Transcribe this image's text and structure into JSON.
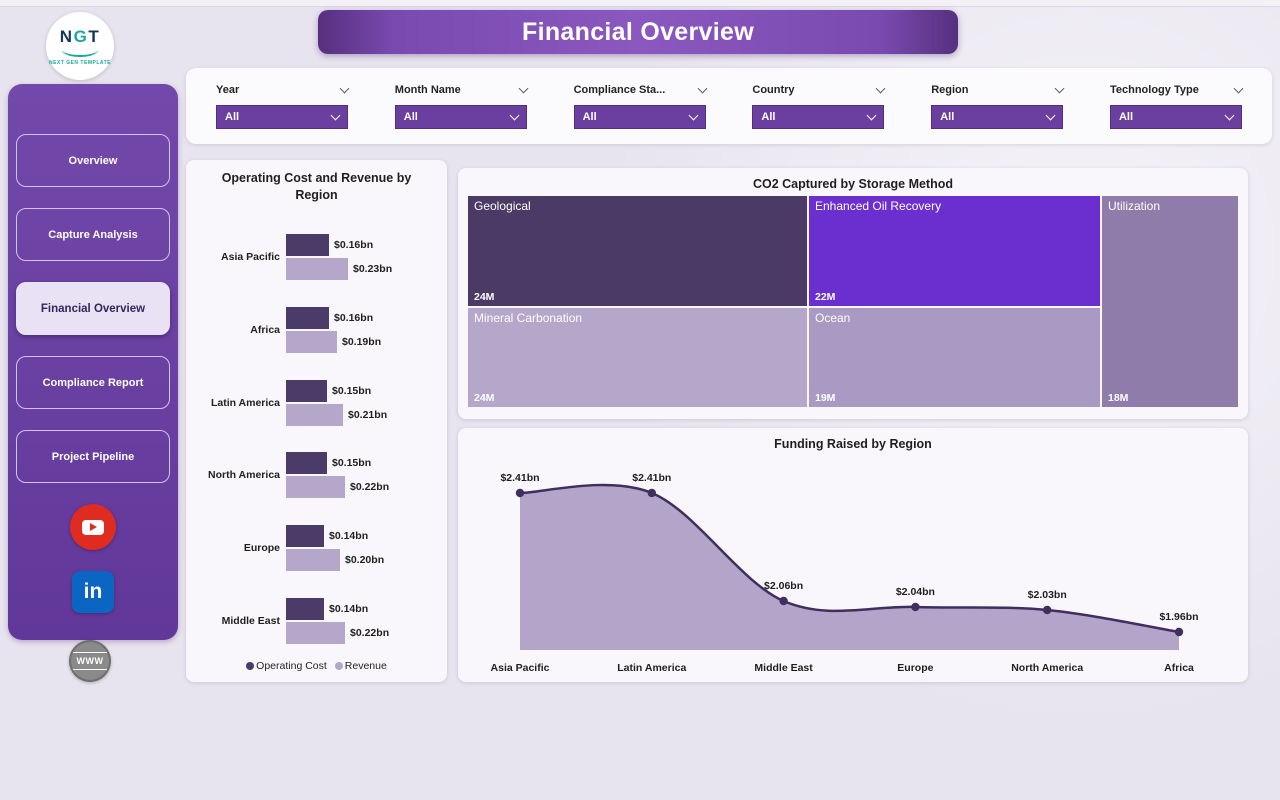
{
  "header": {
    "title": "Financial Overview"
  },
  "logo": {
    "text": "NGT",
    "subtext": "NEXT GEN TEMPLATE"
  },
  "sidebar": {
    "items": [
      {
        "label": "Overview",
        "active": false
      },
      {
        "label": "Capture Analysis",
        "active": false
      },
      {
        "label": "Financial Overview",
        "active": true
      },
      {
        "label": "Compliance Report",
        "active": false
      },
      {
        "label": "Project Pipeline",
        "active": false
      }
    ],
    "social": [
      "youtube",
      "linkedin",
      "website"
    ],
    "globe_text": "WWW"
  },
  "filters": [
    {
      "label": "Year",
      "value": "All"
    },
    {
      "label": "Month Name",
      "value": "All"
    },
    {
      "label": "Compliance Sta...",
      "value": "All"
    },
    {
      "label": "Country",
      "value": "All"
    },
    {
      "label": "Region",
      "value": "All"
    },
    {
      "label": "Technology Type",
      "value": "All"
    }
  ],
  "colors": {
    "operating_cost": "#4b3b68",
    "revenue": "#b4a7ca",
    "area_fill": "#b3a5c9",
    "area_line": "#3f2e5e",
    "accent_purple": "#6a3fa0"
  },
  "chart_data": [
    {
      "type": "bar",
      "title": "Operating Cost and Revenue by Region",
      "orientation": "horizontal",
      "categories": [
        "Asia Pacific",
        "Africa",
        "Latin America",
        "North America",
        "Europe",
        "Middle East"
      ],
      "series": [
        {
          "name": "Operating Cost",
          "color": "#4b3b68",
          "values": [
            0.16,
            0.16,
            0.15,
            0.15,
            0.14,
            0.14
          ],
          "labels": [
            "$0.16bn",
            "$0.16bn",
            "$0.15bn",
            "$0.15bn",
            "$0.14bn",
            "$0.14bn"
          ]
        },
        {
          "name": "Revenue",
          "color": "#b4a7ca",
          "values": [
            0.23,
            0.19,
            0.21,
            0.22,
            0.2,
            0.22
          ],
          "labels": [
            "$0.23bn",
            "$0.19bn",
            "$0.21bn",
            "$0.22bn",
            "$0.20bn",
            "$0.22bn"
          ]
        }
      ],
      "legend_position": "bottom"
    },
    {
      "type": "treemap",
      "title": "CO2 Captured by Storage Method",
      "tiles": [
        {
          "name": "Geological",
          "value": "24M",
          "color": "#4b3a66"
        },
        {
          "name": "Enhanced Oil Recovery",
          "value": "22M",
          "color": "#6b2fd0"
        },
        {
          "name": "Utilization",
          "value": "18M",
          "color": "#8f7cab"
        },
        {
          "name": "Mineral Carbonation",
          "value": "24M",
          "color": "#b4a7ca"
        },
        {
          "name": "Ocean",
          "value": "19M",
          "color": "#a89ac2"
        }
      ]
    },
    {
      "type": "area",
      "title": "Funding Raised by Region",
      "categories": [
        "Asia Pacific",
        "Latin America",
        "Middle East",
        "Europe",
        "North America",
        "Africa"
      ],
      "values": [
        2.41,
        2.41,
        2.06,
        2.04,
        2.03,
        1.96
      ],
      "labels": [
        "$2.41bn",
        "$2.41bn",
        "$2.06bn",
        "$2.04bn",
        "$2.03bn",
        "$1.96bn"
      ],
      "ylim": [
        1.9,
        2.45
      ],
      "grid": false,
      "legend_position": "none"
    }
  ]
}
